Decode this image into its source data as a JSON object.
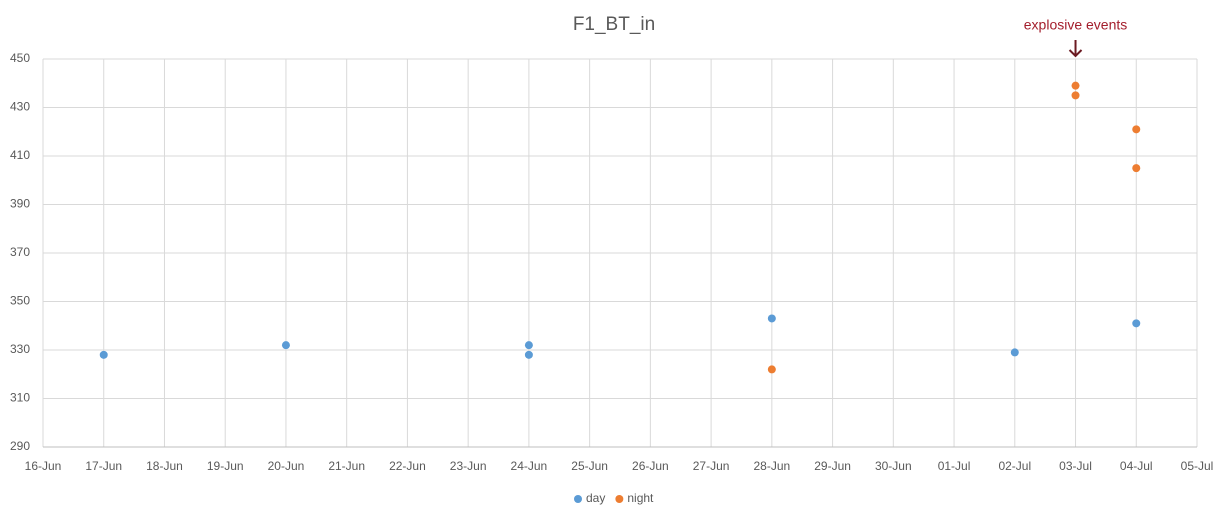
{
  "chart_data": {
    "type": "scatter",
    "title": "F1_BT_in",
    "categories": [
      "16-Jun",
      "17-Jun",
      "18-Jun",
      "19-Jun",
      "20-Jun",
      "21-Jun",
      "22-Jun",
      "23-Jun",
      "24-Jun",
      "25-Jun",
      "26-Jun",
      "27-Jun",
      "28-Jun",
      "29-Jun",
      "30-Jun",
      "01-Jul",
      "02-Jul",
      "03-Jul",
      "04-Jul",
      "05-Jul"
    ],
    "series": [
      {
        "name": "day",
        "color": "#5b9bd5",
        "x": [
          "17-Jun",
          "20-Jun",
          "24-Jun",
          "24-Jun",
          "28-Jun",
          "02-Jul",
          "04-Jul"
        ],
        "values": [
          328,
          332,
          332,
          328,
          343,
          329,
          341
        ]
      },
      {
        "name": "night",
        "color": "#ed7d31",
        "x": [
          "28-Jun",
          "03-Jul",
          "03-Jul",
          "04-Jul",
          "04-Jul"
        ],
        "values": [
          322,
          439,
          435,
          421,
          405
        ]
      }
    ],
    "ylim": [
      290,
      450
    ],
    "yticks": [
      290,
      310,
      330,
      350,
      370,
      390,
      410,
      430,
      450
    ],
    "grid": true,
    "annotation": {
      "text": "explosive events",
      "x": "03-Jul",
      "color": "#a31d2b"
    },
    "legend": "bottom"
  }
}
